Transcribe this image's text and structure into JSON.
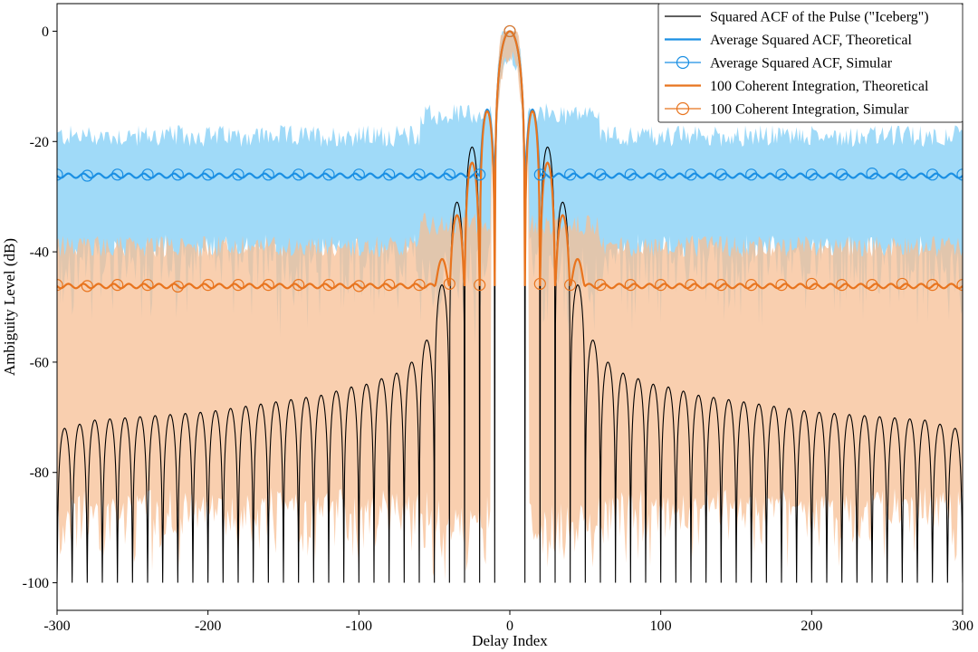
{
  "chart_data": {
    "type": "line",
    "xlabel": "Delay Index",
    "ylabel": "Ambiguity Level (dB)",
    "xlim": [
      -300,
      300
    ],
    "ylim": [
      -105,
      5
    ],
    "x_ticks": [
      -300,
      -200,
      -100,
      0,
      100,
      200,
      300
    ],
    "y_ticks": [
      0,
      -20,
      -40,
      -60,
      -80,
      -100
    ],
    "grid": false,
    "legend_position": "top-right",
    "mainlobe_halfwidth": 10,
    "sidelobe_period": 10,
    "series": [
      {
        "name": "Squared ACF of the Pulse (\"Iceberg\")",
        "color": "#000000",
        "style": "line",
        "sidelobe_peaks_x": [
          15,
          25,
          35,
          45,
          55,
          65,
          75,
          85,
          95,
          105,
          125,
          150,
          175,
          200,
          225,
          250,
          275,
          295
        ],
        "sidelobe_peaks_y": [
          -14.5,
          -21,
          -31,
          -46,
          -56,
          -60,
          -62,
          -63,
          -64,
          -64.5,
          -66,
          -67,
          -68,
          -69,
          -69.5,
          -70,
          -70.5,
          -72
        ],
        "floor": -100
      },
      {
        "name": "Average Squared ACF, Theoretical",
        "color": "#1a8fe3",
        "style": "line",
        "floor_level": -26.2,
        "ripple": 0.4,
        "near_peaks_x": [
          15,
          22
        ],
        "near_peaks_y": [
          -14.5,
          -20.5
        ]
      },
      {
        "name": "Average Squared ACF, Simular",
        "color": "#1a8fe3",
        "style": "markers",
        "x": [
          -300,
          -280,
          -260,
          -240,
          -220,
          -200,
          -180,
          -160,
          -140,
          -120,
          -100,
          -80,
          -60,
          -40,
          -20,
          0,
          20,
          40,
          60,
          80,
          100,
          120,
          140,
          160,
          180,
          200,
          220,
          240,
          260,
          280,
          300
        ],
        "y": [
          -26,
          -26.2,
          -26,
          -26,
          -26,
          -26,
          -26,
          -26,
          -26,
          -26,
          -26,
          -26,
          -26,
          -26,
          -26,
          0,
          -26,
          -26,
          -26,
          -26,
          -26,
          -26,
          -26,
          -26,
          -26,
          -26,
          -26,
          -25.8,
          -26,
          -26,
          -26
        ]
      },
      {
        "name": "100 Coherent Integration, Theoretical",
        "color": "#e8741e",
        "style": "line",
        "floor_level": -46.2,
        "ripple": 0.4,
        "near_peaks_x": [
          15,
          22,
          33,
          44
        ],
        "near_peaks_y": [
          -14.5,
          -21,
          -31.5,
          -43
        ]
      },
      {
        "name": "100 Coherent Integration, Simular",
        "color": "#e8741e",
        "style": "markers",
        "x": [
          -300,
          -280,
          -260,
          -240,
          -220,
          -200,
          -180,
          -160,
          -140,
          -120,
          -100,
          -80,
          -60,
          -40,
          -20,
          0,
          20,
          40,
          60,
          80,
          100,
          120,
          140,
          160,
          180,
          200,
          220,
          240,
          260,
          280,
          300
        ],
        "y": [
          -46,
          -46.2,
          -46,
          -46,
          -46.3,
          -46,
          -46,
          -46,
          -46,
          -46,
          -46.2,
          -46,
          -46,
          -45.8,
          -46,
          0,
          -45.8,
          -46,
          -46,
          -46,
          -46,
          -46,
          -46,
          -46,
          -46,
          -45.8,
          -46,
          -46,
          -45.8,
          -46,
          -46
        ]
      }
    ],
    "bands": [
      {
        "for": "Average Squared ACF",
        "color": "#8fd3f7",
        "upper_level": -19,
        "lower_level": -38
      },
      {
        "for": "100 Coherent Integration",
        "color": "#f7bf94",
        "upper_level": -39,
        "lower_level": -84
      }
    ]
  }
}
